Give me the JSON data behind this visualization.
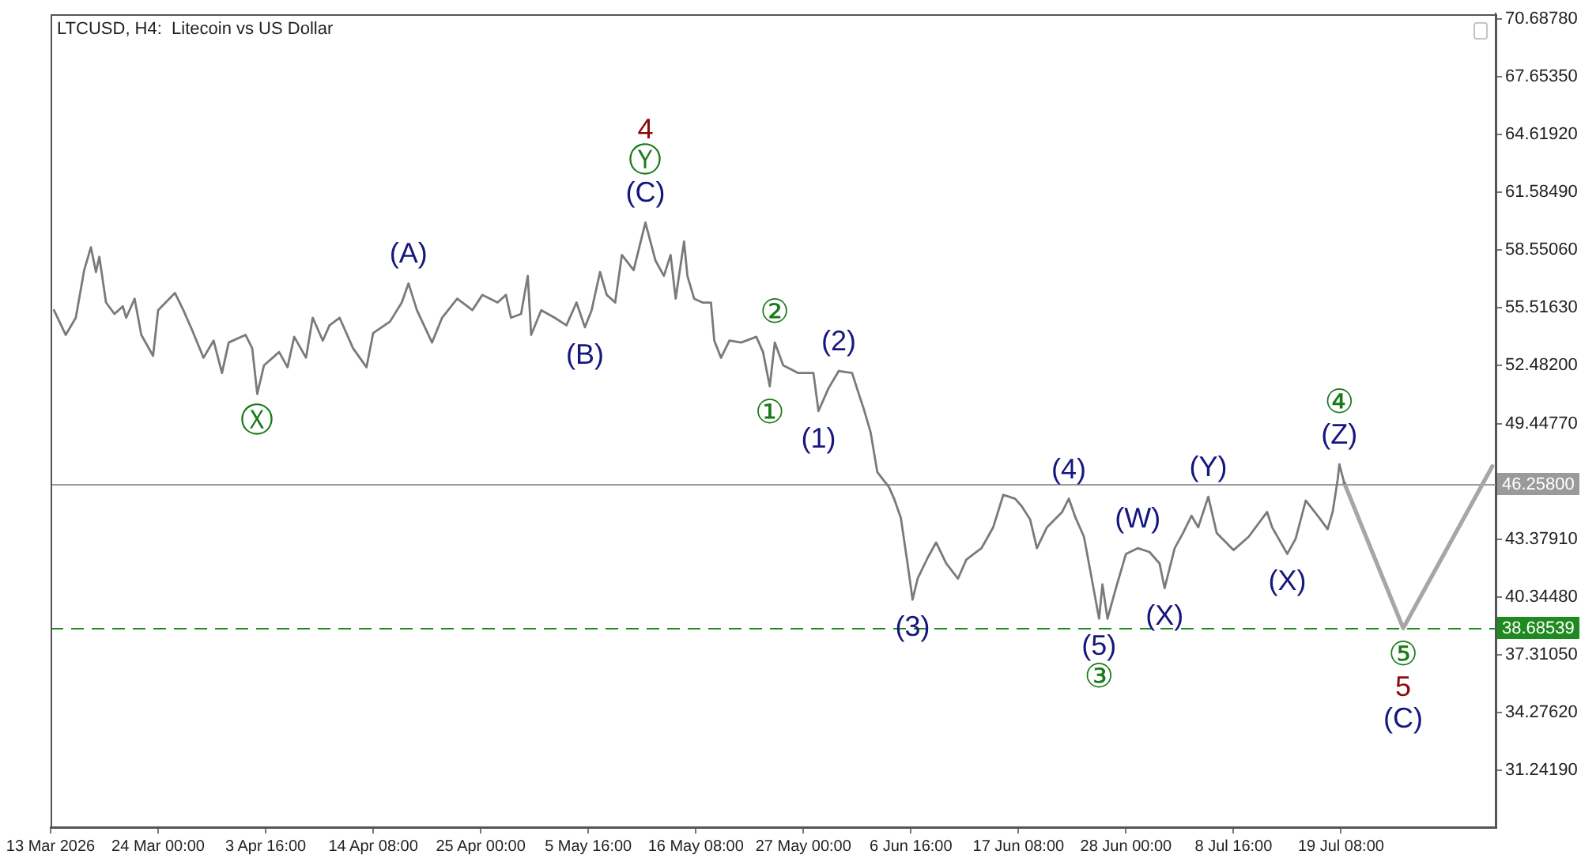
{
  "chart_data": {
    "type": "line",
    "title": "LTCUSD, H4:  Litecoin vs US Dollar",
    "series": [
      {
        "color": "#7a7a7a",
        "x": [
          "2026-03-13T16:00",
          "2026-03-14T20:00",
          "2026-03-15T20:00",
          "2026-03-16T16:00",
          "2026-03-17T08:00",
          "2026-03-17T20:00",
          "2026-03-18T04:00",
          "2026-03-18T20:00",
          "2026-03-19T16:00",
          "2026-03-20T12:00",
          "2026-03-20T20:00",
          "2026-03-21T16:00",
          "2026-03-22T08:00",
          "2026-03-23T12:00",
          "2026-03-24T00:00",
          "2026-03-25T16:00",
          "2026-03-26T12:00",
          "2026-03-27T08:00",
          "2026-03-28T12:00",
          "2026-03-29T12:00",
          "2026-03-30T08:00",
          "2026-03-31T00:00",
          "2026-04-01T16:00",
          "2026-04-02T08:00",
          "2026-04-02T20:00",
          "2026-04-03T12:00",
          "2026-04-05T00:00",
          "2026-04-05T20:00",
          "2026-04-06T12:00",
          "2026-04-07T16:00",
          "2026-04-08T08:00",
          "2026-04-09T08:00",
          "2026-04-10T00:00",
          "2026-04-11T00:00",
          "2026-04-12T08:00",
          "2026-04-13T16:00",
          "2026-04-14T08:00",
          "2026-04-16T00:00",
          "2026-04-17T04:00",
          "2026-04-17T20:00",
          "2026-04-18T16:00",
          "2026-04-20T04:00",
          "2026-04-21T04:00",
          "2026-04-22T16:00",
          "2026-04-24T04:00",
          "2026-04-25T04:00",
          "2026-04-26T16:00",
          "2026-04-27T12:00",
          "2026-04-28T00:00",
          "2026-04-29T00:00",
          "2026-04-29T16:00",
          "2026-04-30T00:00",
          "2026-05-01T00:00",
          "2026-05-02T08:00",
          "2026-05-03T12:00",
          "2026-05-04T12:00",
          "2026-05-05T08:00",
          "2026-05-06T00:00",
          "2026-05-06T20:00",
          "2026-05-07T12:00",
          "2026-05-08T08:00",
          "2026-05-09T00:00",
          "2026-05-10T04:00",
          "2026-05-11T08:00",
          "2026-05-12T08:00",
          "2026-05-13T04:00",
          "2026-05-13T20:00",
          "2026-05-14T08:00",
          "2026-05-15T04:00",
          "2026-05-15T12:00",
          "2026-05-16T04:00",
          "2026-05-17T00:00",
          "2026-05-17T20:00",
          "2026-05-18T04:00",
          "2026-05-18T20:00",
          "2026-05-19T16:00",
          "2026-05-20T20:00",
          "2026-05-22T08:00",
          "2026-05-23T00:00",
          "2026-05-23T16:00",
          "2026-05-24T04:00",
          "2026-05-25T00:00",
          "2026-05-26T12:00",
          "2026-05-28T00:00",
          "2026-05-28T12:00",
          "2026-05-29T12:00",
          "2026-05-30T12:00",
          "2026-05-31T20:00",
          "2026-06-01T12:00",
          "2026-06-02T00:00",
          "2026-06-02T16:00",
          "2026-06-03T08:00",
          "2026-06-04T12:00",
          "2026-06-05T00:00",
          "2026-06-05T16:00",
          "2026-06-06T08:00",
          "2026-06-06T20:00",
          "2026-06-07T08:00",
          "2026-06-08T08:00",
          "2026-06-09T04:00",
          "2026-06-10T04:00",
          "2026-06-11T08:00",
          "2026-06-12T04:00",
          "2026-06-13T16:00",
          "2026-06-14T20:00",
          "2026-06-15T20:00",
          "2026-06-17T00:00",
          "2026-06-17T16:00",
          "2026-06-18T12:00",
          "2026-06-19T04:00",
          "2026-06-20T04:00",
          "2026-06-21T16:00",
          "2026-06-22T08:00",
          "2026-06-23T00:00",
          "2026-06-23T20:00",
          "2026-06-24T12:00",
          "2026-06-25T08:00",
          "2026-06-25T16:00",
          "2026-06-26T04:00",
          "2026-06-27T00:00",
          "2026-06-28T00:00",
          "2026-06-29T04:00",
          "2026-06-30T08:00",
          "2026-07-01T08:00",
          "2026-07-01T20:00",
          "2026-07-02T20:00",
          "2026-07-03T16:00",
          "2026-07-04T12:00",
          "2026-07-05T04:00",
          "2026-07-06T04:00",
          "2026-07-07T00:00",
          "2026-07-08T16:00",
          "2026-07-10T04:00",
          "2026-07-12T00:00",
          "2026-07-12T12:00",
          "2026-07-14T00:00",
          "2026-07-14T20:00",
          "2026-07-15T20:00",
          "2026-07-17T04:00",
          "2026-07-18T00:00",
          "2026-07-18T12:00",
          "2026-07-19T00:00",
          "2026-07-19T04:00",
          "2026-07-19T16:00"
        ],
        "values": [
          55.4,
          54.1,
          55.0,
          57.5,
          58.7,
          57.4,
          58.2,
          55.8,
          55.2,
          55.6,
          55.0,
          56.0,
          54.1,
          53.0,
          55.4,
          56.3,
          55.4,
          54.4,
          52.9,
          53.8,
          52.1,
          53.7,
          54.1,
          53.4,
          51.0,
          52.5,
          53.2,
          52.4,
          54.0,
          52.9,
          55.0,
          53.8,
          54.6,
          55.0,
          53.4,
          52.4,
          54.2,
          54.8,
          55.8,
          56.8,
          55.4,
          53.7,
          55.0,
          56.0,
          55.4,
          56.2,
          55.8,
          56.2,
          55.0,
          55.2,
          57.2,
          54.1,
          55.4,
          55.0,
          54.6,
          55.8,
          54.5,
          55.4,
          57.4,
          56.2,
          55.8,
          58.3,
          57.5,
          60.0,
          58.0,
          57.2,
          58.3,
          56.0,
          59.0,
          57.2,
          56.0,
          55.8,
          55.8,
          53.8,
          52.9,
          53.8,
          53.7,
          54.0,
          53.2,
          51.4,
          53.7,
          52.5,
          52.1,
          52.1,
          50.1,
          51.3,
          52.2,
          52.1,
          51.0,
          50.2,
          49.0,
          46.9,
          46.1,
          45.5,
          44.5,
          42.1,
          40.2,
          41.3,
          42.4,
          43.2,
          42.1,
          41.3,
          42.3,
          42.9,
          44.0,
          45.7,
          45.5,
          45.1,
          44.4,
          42.9,
          44.0,
          44.8,
          45.5,
          44.5,
          43.5,
          41.6,
          39.2,
          41.0,
          39.2,
          40.8,
          42.6,
          42.9,
          42.7,
          42.1,
          40.8,
          42.9,
          43.7,
          44.6,
          44.0,
          45.6,
          43.7,
          42.8,
          43.5,
          44.8,
          44.0,
          42.6,
          43.4,
          45.4,
          44.5,
          43.9,
          44.8,
          46.5,
          47.3,
          46.3
        ]
      },
      {
        "color": "#a6a6a6",
        "x": [
          "2026-07-19T16:00",
          "2026-07-25T12:00",
          "2026-08-03T08:00"
        ],
        "values": [
          46.3,
          38.7,
          47.2
        ]
      }
    ],
    "xlim": [
      "2026-03-13T08:00",
      "2026-08-03T16:00"
    ],
    "xticks": [
      {
        "value": "2026-03-13T08:00",
        "label": "13 Mar 2026"
      },
      {
        "value": "2026-03-24T00:00",
        "label": "24 Mar 00:00"
      },
      {
        "value": "2026-04-03T16:00",
        "label": "3 Apr 16:00"
      },
      {
        "value": "2026-04-14T08:00",
        "label": "14 Apr 08:00"
      },
      {
        "value": "2026-04-25T00:00",
        "label": "25 Apr 00:00"
      },
      {
        "value": "2026-05-05T16:00",
        "label": "5 May 16:00"
      },
      {
        "value": "2026-05-16T08:00",
        "label": "16 May 08:00"
      },
      {
        "value": "2026-05-27T00:00",
        "label": "27 May 00:00"
      },
      {
        "value": "2026-06-06T16:00",
        "label": "6 Jun 16:00"
      },
      {
        "value": "2026-06-17T08:00",
        "label": "17 Jun 08:00"
      },
      {
        "value": "2026-06-28T00:00",
        "label": "28 Jun 00:00"
      },
      {
        "value": "2026-07-08T16:00",
        "label": "8 Jul 16:00"
      },
      {
        "value": "2026-07-19T08:00",
        "label": "19 Jul 08:00"
      }
    ],
    "ylim": [
      28.25,
      70.97
    ],
    "yticks": [
      {
        "value": 70.6878,
        "label": "70.68780"
      },
      {
        "value": 67.6535,
        "label": "67.65350"
      },
      {
        "value": 64.6192,
        "label": "64.61920"
      },
      {
        "value": 61.5849,
        "label": "61.58490"
      },
      {
        "value": 58.5506,
        "label": "58.55060"
      },
      {
        "value": 55.5163,
        "label": "55.51630"
      },
      {
        "value": 52.482,
        "label": "52.48200"
      },
      {
        "value": 49.4477,
        "label": "49.44770"
      },
      {
        "value": 43.3791,
        "label": "43.37910"
      },
      {
        "value": 40.3448,
        "label": "40.34480"
      },
      {
        "value": 37.3105,
        "label": "37.31050"
      },
      {
        "value": 34.2762,
        "label": "34.27620"
      },
      {
        "value": 31.2419,
        "label": "31.24190"
      }
    ],
    "ref_lines": [
      {
        "axis": "y",
        "value": 46.258,
        "label": "46.25800",
        "color": "#9a9a9a",
        "line_style": "solid"
      },
      {
        "axis": "y",
        "value": 38.68539,
        "label": "38.68539",
        "color": "#1f8a1f",
        "line_style": "dashed"
      }
    ],
    "annotations": [
      {
        "text": "Ⓧ",
        "x": "2026-04-02T20:00",
        "y": 51.0
      },
      {
        "text": "(A)",
        "x": "2026-04-17T20:00",
        "y": 56.8
      },
      {
        "text": "(B)",
        "x": "2026-05-05T08:00",
        "y": 54.5
      },
      {
        "text": "4",
        "x": "2026-05-11T08:00",
        "y": 60.0
      },
      {
        "text": "Ⓨ",
        "x": "2026-05-11T08:00",
        "y": 60.0
      },
      {
        "text": "(C)",
        "x": "2026-05-11T08:00",
        "y": 60.0
      },
      {
        "text": "②",
        "x": "2026-05-24T04:00",
        "y": 53.7
      },
      {
        "text": "①",
        "x": "2026-05-23T16:00",
        "y": 51.4
      },
      {
        "text": "(2)",
        "x": "2026-05-30T12:00",
        "y": 52.2
      },
      {
        "text": "(1)",
        "x": "2026-05-28T12:00",
        "y": 50.1
      },
      {
        "text": "(3)",
        "x": "2026-06-06T20:00",
        "y": 40.2
      },
      {
        "text": "(4)",
        "x": "2026-06-22T08:00",
        "y": 45.5
      },
      {
        "text": "(5)",
        "x": "2026-06-25T08:00",
        "y": 39.2
      },
      {
        "text": "③",
        "x": "2026-06-25T08:00",
        "y": 39.2
      },
      {
        "text": "(W)",
        "x": "2026-06-29T04:00",
        "y": 42.9
      },
      {
        "text": "(X)",
        "x": "2026-07-01T20:00",
        "y": 40.8
      },
      {
        "text": "(Y)",
        "x": "2026-07-06T04:00",
        "y": 45.6
      },
      {
        "text": "(X)",
        "x": "2026-07-14T00:00",
        "y": 42.6
      },
      {
        "text": "④",
        "x": "2026-07-19T04:00",
        "y": 47.3
      },
      {
        "text": "(Z)",
        "x": "2026-07-19T04:00",
        "y": 47.3
      },
      {
        "text": "⑤",
        "x": "2026-07-25T12:00",
        "y": 38.7
      },
      {
        "text": "5",
        "x": "2026-07-25T12:00",
        "y": 38.7
      },
      {
        "text": "(C)",
        "x": "2026-07-25T12:00",
        "y": 38.7
      }
    ]
  }
}
